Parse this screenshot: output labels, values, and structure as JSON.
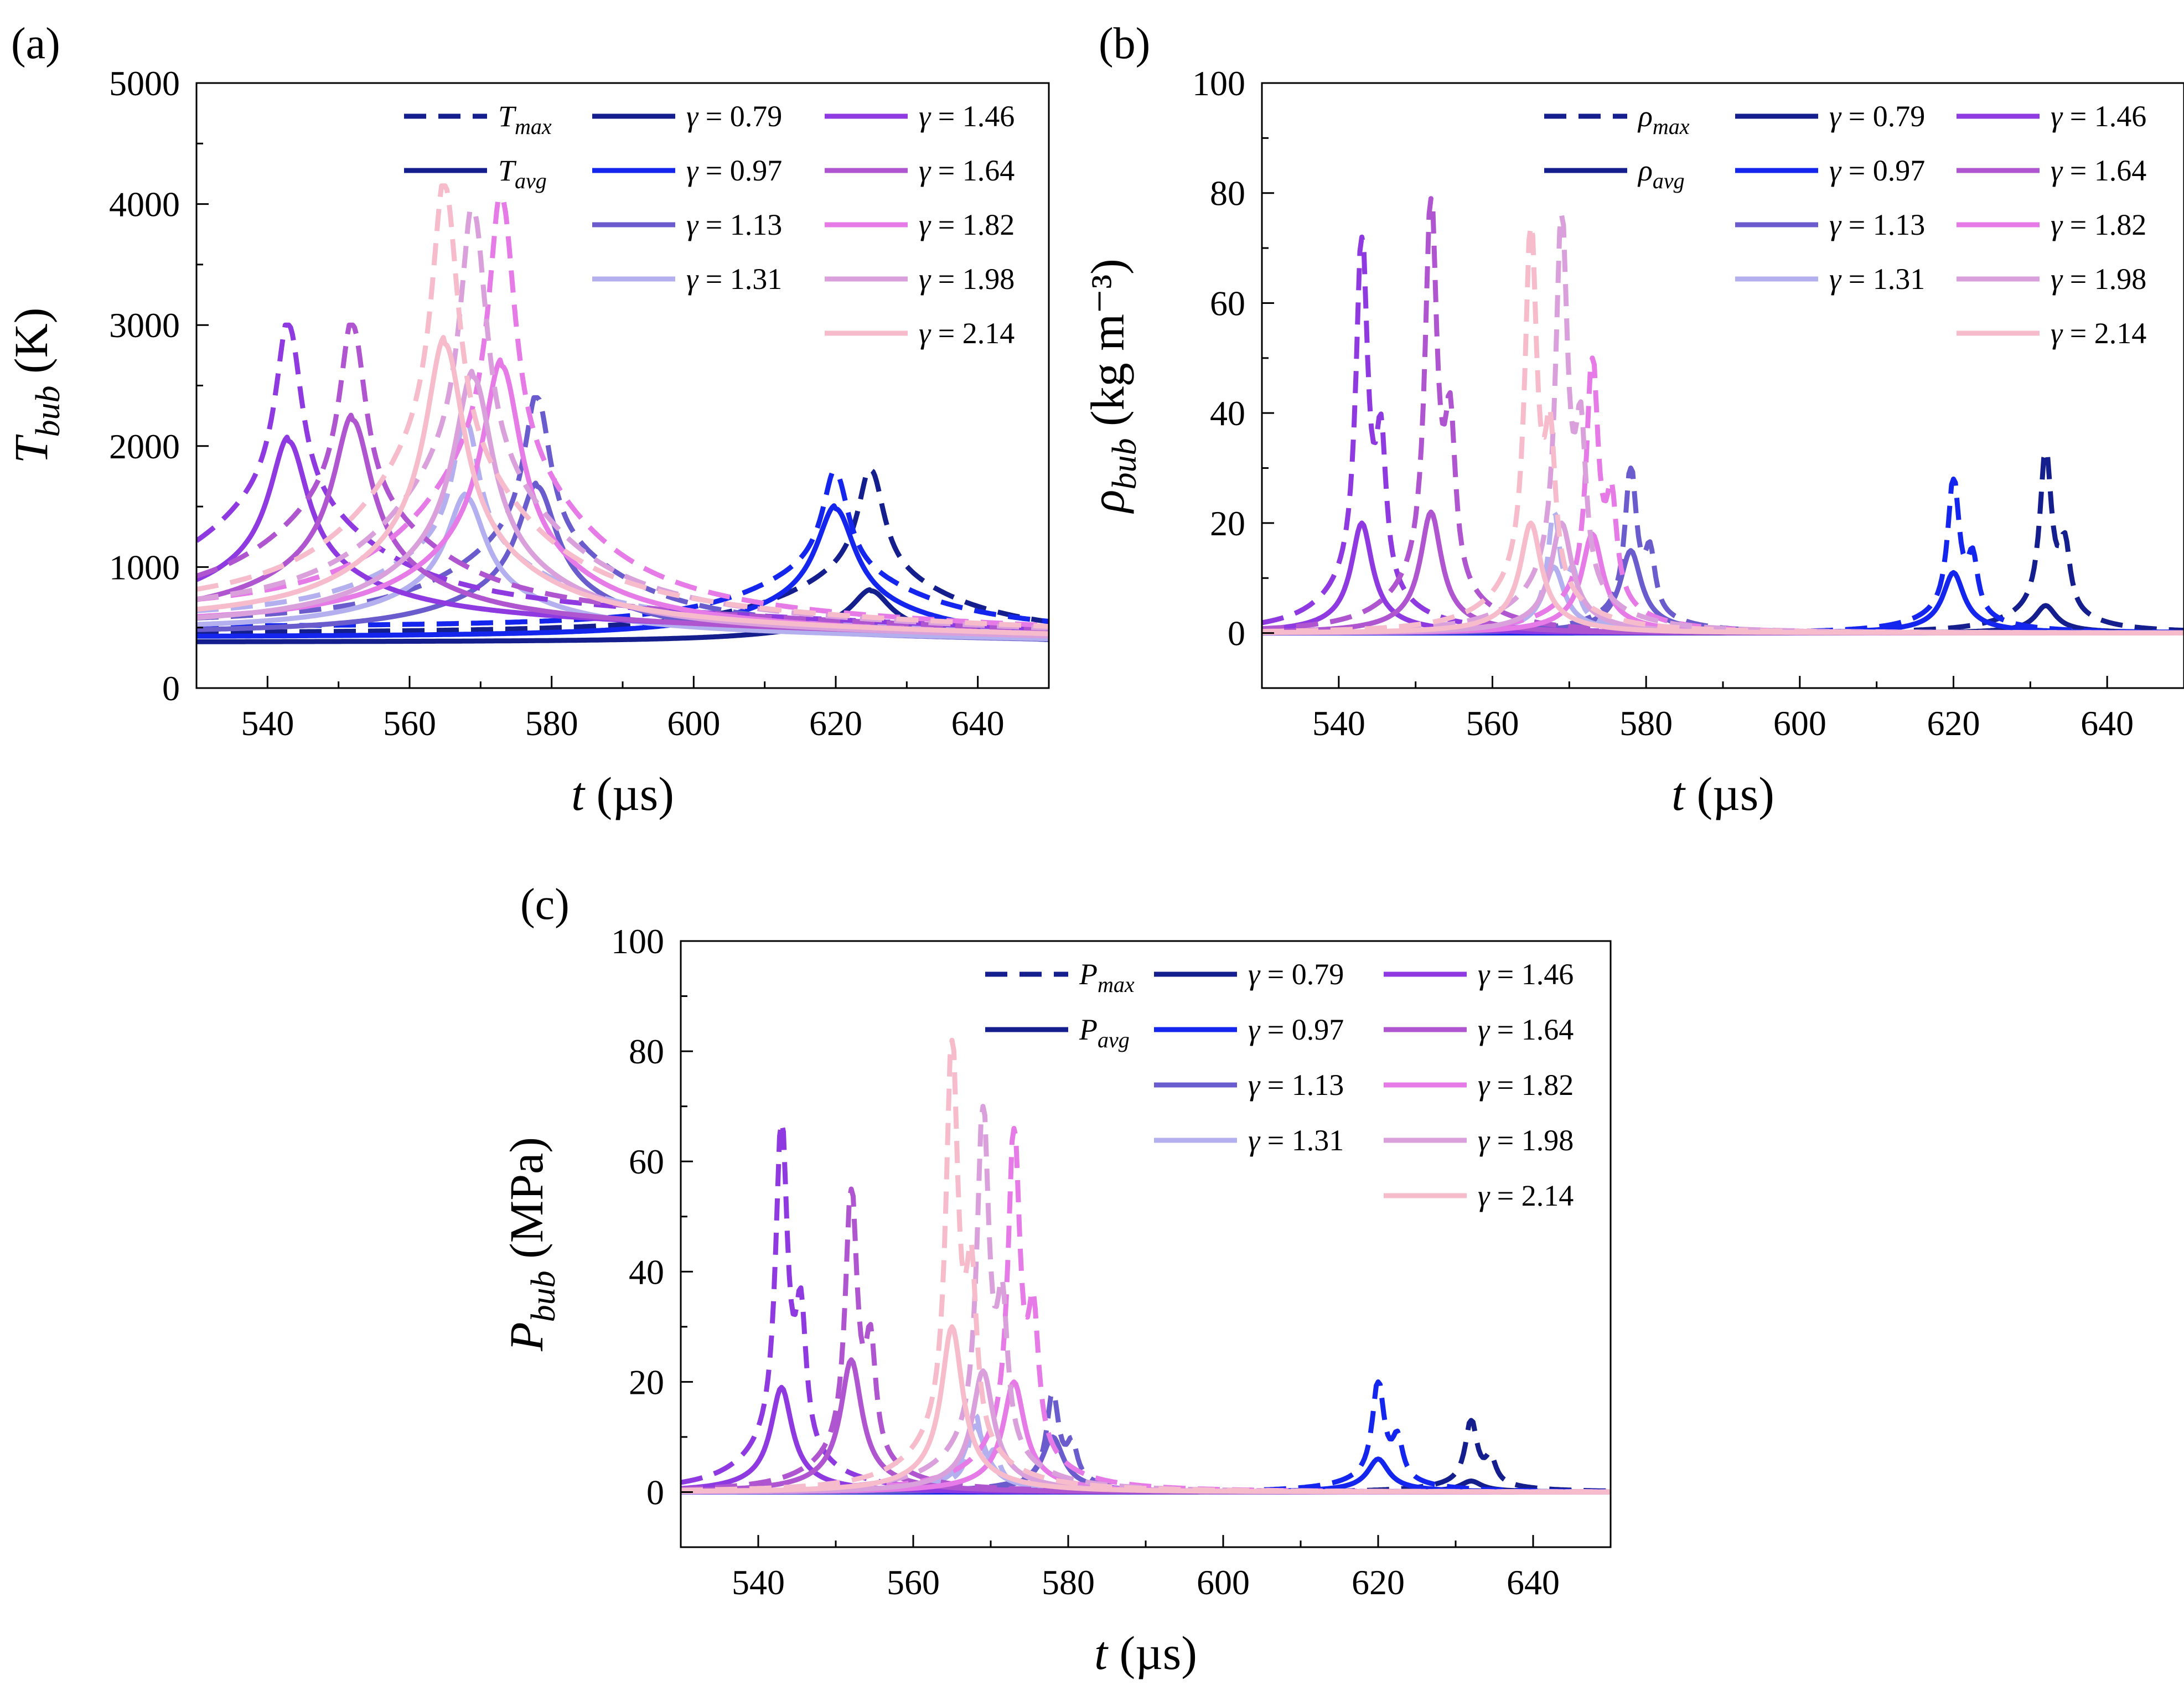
{
  "chart_data": [
    {
      "panel": "(a)",
      "type": "line",
      "ylabel": {
        "var": "T",
        "sub": "bub",
        "unit": " (K)"
      },
      "xlabel": {
        "var": "t",
        "unit": " (µs)"
      },
      "xlim": [
        530,
        650
      ],
      "ylim": [
        0,
        5000
      ],
      "xticks": [
        540,
        560,
        580,
        600,
        620,
        640
      ],
      "yticks": [
        0,
        1000,
        2000,
        3000,
        4000,
        5000
      ],
      "legend_style": [
        {
          "var": "T",
          "sub": "max",
          "dash": true
        },
        {
          "var": "T",
          "sub": "avg",
          "dash": false
        }
      ],
      "legend_gamma": [
        "γ = 0.79",
        "γ = 0.97",
        "γ = 1.13",
        "γ = 1.31",
        "γ = 1.46",
        "γ = 1.64",
        "γ = 1.82",
        "γ = 1.98",
        "γ = 2.14"
      ],
      "series": [
        {
          "gamma": "0.79",
          "max_peak": 1800,
          "avg_peak": 850,
          "t_peak": 625,
          "max_base": 450,
          "avg_base": 380
        },
        {
          "gamma": "0.97",
          "max_peak": 1780,
          "avg_peak": 1600,
          "t_peak": 620,
          "max_base": 500,
          "avg_base": 420
        },
        {
          "gamma": "1.13",
          "max_peak": 2400,
          "avg_peak": 1800,
          "t_peak": 578,
          "max_base": 520,
          "avg_base": 450
        },
        {
          "gamma": "1.31",
          "max_peak": 2200,
          "avg_peak": 1700,
          "t_peak": 568,
          "max_base": 560,
          "avg_base": 480
        },
        {
          "gamma": "1.46",
          "max_peak": 3000,
          "avg_peak": 2200,
          "t_peak": 543,
          "max_base": 700,
          "avg_base": 600
        },
        {
          "gamma": "1.64",
          "max_peak": 3000,
          "avg_peak": 2400,
          "t_peak": 552,
          "max_base": 650,
          "avg_base": 560
        },
        {
          "gamma": "1.82",
          "max_peak": 4050,
          "avg_peak": 2900,
          "t_peak": 573,
          "max_base": 600,
          "avg_base": 520
        },
        {
          "gamma": "1.98",
          "max_peak": 3950,
          "avg_peak": 2800,
          "t_peak": 569,
          "max_base": 580,
          "avg_base": 500
        },
        {
          "gamma": "2.14",
          "max_peak": 4150,
          "avg_peak": 3100,
          "t_peak": 565,
          "max_base": 620,
          "avg_base": 540
        }
      ]
    },
    {
      "panel": "(b)",
      "type": "line",
      "ylabel": {
        "var": "ρ",
        "sub": "bub",
        "unit": " (kg m⁻³)"
      },
      "xlabel": {
        "var": "t",
        "unit": " (µs)"
      },
      "xlim": [
        530,
        650
      ],
      "ylim": [
        -10,
        100
      ],
      "xticks": [
        540,
        560,
        580,
        600,
        620,
        640
      ],
      "yticks": [
        0,
        20,
        40,
        60,
        80,
        100
      ],
      "legend_style": [
        {
          "var": "ρ",
          "sub": "max",
          "dash": true
        },
        {
          "var": "ρ",
          "sub": "avg",
          "dash": false
        }
      ],
      "legend_gamma": [
        "γ = 0.79",
        "γ = 0.97",
        "γ = 1.13",
        "γ = 1.31",
        "γ = 1.46",
        "γ = 1.64",
        "γ = 1.82",
        "γ = 1.98",
        "γ = 2.14"
      ],
      "series": [
        {
          "gamma": "0.79",
          "max_peak": 33,
          "avg_peak": 5,
          "t_peak": 632
        },
        {
          "gamma": "0.97",
          "max_peak": 28,
          "avg_peak": 11,
          "t_peak": 620
        },
        {
          "gamma": "1.13",
          "max_peak": 30,
          "avg_peak": 15,
          "t_peak": 578
        },
        {
          "gamma": "1.31",
          "max_peak": 22,
          "avg_peak": 12,
          "t_peak": 568
        },
        {
          "gamma": "1.46",
          "max_peak": 72,
          "avg_peak": 20,
          "t_peak": 543
        },
        {
          "gamma": "1.64",
          "max_peak": 79,
          "avg_peak": 22,
          "t_peak": 552
        },
        {
          "gamma": "1.82",
          "max_peak": 50,
          "avg_peak": 18,
          "t_peak": 573
        },
        {
          "gamma": "1.98",
          "max_peak": 76,
          "avg_peak": 20,
          "t_peak": 569
        },
        {
          "gamma": "2.14",
          "max_peak": 74,
          "avg_peak": 20,
          "t_peak": 565
        }
      ]
    },
    {
      "panel": "(c)",
      "type": "line",
      "ylabel": {
        "var": "P",
        "sub": "bub",
        "unit": " (MPa)"
      },
      "xlabel": {
        "var": "t",
        "unit": " (µs)"
      },
      "xlim": [
        530,
        650
      ],
      "ylim": [
        -10,
        100
      ],
      "xticks": [
        540,
        560,
        580,
        600,
        620,
        640
      ],
      "yticks": [
        0,
        20,
        40,
        60,
        80,
        100
      ],
      "legend_style": [
        {
          "var": "P",
          "sub": "max",
          "dash": true
        },
        {
          "var": "P",
          "sub": "avg",
          "dash": false
        }
      ],
      "legend_gamma": [
        "γ = 0.79",
        "γ = 0.97",
        "γ = 1.13",
        "γ = 1.31",
        "γ = 1.46",
        "γ = 1.64",
        "γ = 1.82",
        "γ = 1.98",
        "γ = 2.14"
      ],
      "series": [
        {
          "gamma": "0.79",
          "max_peak": 13,
          "avg_peak": 2,
          "t_peak": 632
        },
        {
          "gamma": "0.97",
          "max_peak": 20,
          "avg_peak": 6,
          "t_peak": 620
        },
        {
          "gamma": "1.13",
          "max_peak": 18,
          "avg_peak": 10,
          "t_peak": 578
        },
        {
          "gamma": "1.31",
          "max_peak": 14,
          "avg_peak": 12,
          "t_peak": 568
        },
        {
          "gamma": "1.46",
          "max_peak": 67,
          "avg_peak": 19,
          "t_peak": 543
        },
        {
          "gamma": "1.64",
          "max_peak": 55,
          "avg_peak": 24,
          "t_peak": 552
        },
        {
          "gamma": "1.82",
          "max_peak": 66,
          "avg_peak": 20,
          "t_peak": 573
        },
        {
          "gamma": "1.98",
          "max_peak": 70,
          "avg_peak": 22,
          "t_peak": 569
        },
        {
          "gamma": "2.14",
          "max_peak": 82,
          "avg_peak": 30,
          "t_peak": 565
        }
      ]
    }
  ],
  "colors": {
    "0.79": "#141e8c",
    "0.97": "#1426ee",
    "1.13": "#6a5ccc",
    "1.31": "#b4b0f0",
    "1.46": "#8e3ae0",
    "1.64": "#b055d0",
    "1.82": "#e67ae6",
    "1.98": "#d9a0dc",
    "2.14": "#f7bccb"
  }
}
